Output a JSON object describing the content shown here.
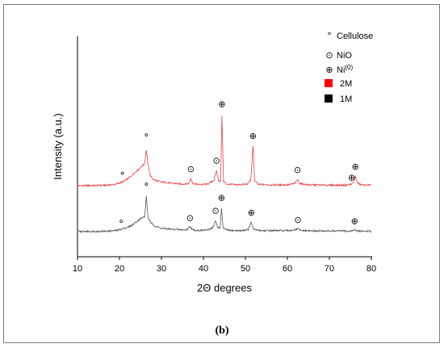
{
  "panel_label": "(b)",
  "chart_data": {
    "type": "line",
    "xlabel": "2Θ degrees",
    "ylabel": "Intensity (a.u.)",
    "xlim": [
      10,
      80
    ],
    "xticks": [
      10,
      20,
      30,
      40,
      50,
      60,
      70,
      80
    ],
    "y_axis_ticks_shown": false,
    "grid": false,
    "legend_position": "top-right",
    "legend": {
      "markers": [
        {
          "symbol": "°",
          "label": "Cellulose"
        },
        {
          "symbol": "⊙",
          "label": "NiO"
        },
        {
          "symbol": "⊕",
          "label": "Ni",
          "superscript": "(0)"
        }
      ],
      "swatches": [
        {
          "label": "2M",
          "color": "#ff0000"
        },
        {
          "label": "1M",
          "color": "#000000"
        }
      ]
    },
    "series": [
      {
        "name": "2M",
        "color": "#e8434a",
        "baseline": 0.0,
        "points": [
          [
            10,
            0
          ],
          [
            16,
            0.3
          ],
          [
            19,
            1.2
          ],
          [
            21,
            4
          ],
          [
            22.5,
            8
          ],
          [
            23.5,
            12
          ],
          [
            24.5,
            15
          ],
          [
            25.5,
            19
          ],
          [
            26,
            21
          ],
          [
            26.4,
            34
          ],
          [
            26.8,
            20
          ],
          [
            27.3,
            10
          ],
          [
            28,
            6
          ],
          [
            29,
            4.5
          ],
          [
            30,
            3.5
          ],
          [
            32,
            2.5
          ],
          [
            35,
            1.5
          ],
          [
            36.5,
            2
          ],
          [
            37,
            7
          ],
          [
            37.5,
            2
          ],
          [
            39,
            1
          ],
          [
            41,
            1.5
          ],
          [
            42.5,
            5
          ],
          [
            43.1,
            14
          ],
          [
            43.6,
            5
          ],
          [
            44.1,
            4
          ],
          [
            44.4,
            66
          ],
          [
            44.8,
            4
          ],
          [
            45.5,
            1.5
          ],
          [
            48,
            0.8
          ],
          [
            50.5,
            1.5
          ],
          [
            51.3,
            6
          ],
          [
            51.8,
            37
          ],
          [
            52.2,
            5
          ],
          [
            53,
            1.2
          ],
          [
            56,
            0.8
          ],
          [
            60,
            0.8
          ],
          [
            61.8,
            2
          ],
          [
            62.4,
            6
          ],
          [
            63,
            2
          ],
          [
            65,
            0.8
          ],
          [
            70,
            0.5
          ],
          [
            74,
            0.5
          ],
          [
            75.3,
            1.5
          ],
          [
            75.8,
            3
          ],
          [
            76.2,
            9
          ],
          [
            76.6,
            3
          ],
          [
            77.5,
            0.8
          ],
          [
            80,
            0.5
          ]
        ],
        "annotations": [
          {
            "x": 20.7,
            "y": 9,
            "symbol": "°"
          },
          {
            "x": 26.4,
            "y": 45,
            "symbol": "°"
          },
          {
            "x": 37.0,
            "y": 13,
            "symbol": "⊙"
          },
          {
            "x": 43.1,
            "y": 21,
            "symbol": "⊙"
          },
          {
            "x": 44.4,
            "y": 74,
            "symbol": "⊕"
          },
          {
            "x": 51.8,
            "y": 44,
            "symbol": "⊕"
          },
          {
            "x": 62.4,
            "y": 12,
            "symbol": "⊙"
          },
          {
            "x": 75.3,
            "y": 5,
            "symbol": "⊕"
          },
          {
            "x": 76.2,
            "y": 15,
            "symbol": "⊕"
          }
        ]
      },
      {
        "name": "1M",
        "color": "#555555",
        "baseline": -43.0,
        "points": [
          [
            10,
            0
          ],
          [
            17,
            0.3
          ],
          [
            19.5,
            1
          ],
          [
            21,
            3
          ],
          [
            22,
            4
          ],
          [
            23,
            6
          ],
          [
            24,
            9
          ],
          [
            25,
            12
          ],
          [
            26,
            14
          ],
          [
            26.4,
            33
          ],
          [
            26.8,
            13
          ],
          [
            27.5,
            8
          ],
          [
            28.5,
            5
          ],
          [
            30,
            3
          ],
          [
            33,
            2
          ],
          [
            36,
            1.5
          ],
          [
            36.8,
            5
          ],
          [
            37.4,
            1.5
          ],
          [
            39,
            1
          ],
          [
            41,
            1.5
          ],
          [
            42.3,
            4
          ],
          [
            42.9,
            10
          ],
          [
            43.4,
            4
          ],
          [
            44,
            3.5
          ],
          [
            44.3,
            22
          ],
          [
            44.7,
            3
          ],
          [
            46,
            1
          ],
          [
            49,
            0.8
          ],
          [
            50.7,
            2
          ],
          [
            51.4,
            9
          ],
          [
            51.9,
            2
          ],
          [
            54,
            0.8
          ],
          [
            60,
            0.8
          ],
          [
            62,
            1.5
          ],
          [
            62.5,
            3
          ],
          [
            63,
            1
          ],
          [
            66,
            0.5
          ],
          [
            70,
            0.5
          ],
          [
            75,
            0.5
          ],
          [
            76,
            1.5
          ],
          [
            76.5,
            0.5
          ],
          [
            80,
            0.3
          ]
        ],
        "annotations": [
          {
            "x": 20.4,
            "y": 7,
            "symbol": "°"
          },
          {
            "x": 26.4,
            "y": 42,
            "symbol": "°"
          },
          {
            "x": 36.8,
            "y": 10,
            "symbol": "⊙"
          },
          {
            "x": 42.9,
            "y": 17,
            "symbol": "⊙"
          },
          {
            "x": 44.3,
            "y": 29,
            "symbol": "⊕"
          },
          {
            "x": 51.4,
            "y": 15,
            "symbol": "⊕"
          },
          {
            "x": 62.5,
            "y": 8,
            "symbol": "⊙"
          },
          {
            "x": 76.0,
            "y": 7,
            "symbol": "⊕"
          }
        ]
      }
    ]
  }
}
